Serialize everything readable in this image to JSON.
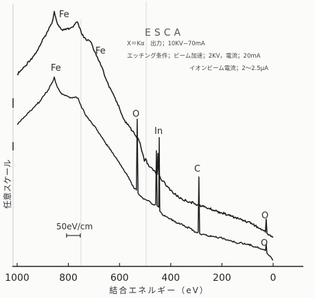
{
  "chart_data": {
    "type": "line",
    "title": "ESCA",
    "conditions": [
      "X＝Kα　出力；10KV−70mA",
      "エッチング条件；ビーム加速；2KV，電流；20mA",
      "イオンビーム電流；2〜2.5μA"
    ],
    "xlabel": "結合エネルギー（eV）",
    "ylabel": "任意スケール",
    "xlim": [
      1000,
      0
    ],
    "ylim": [
      0,
      100
    ],
    "x_reversed": true,
    "xticks": [
      1000,
      800,
      600,
      400,
      200,
      0
    ],
    "xtick_labels": [
      "1000",
      "800",
      "600",
      "400",
      "200",
      "0"
    ],
    "grid": false,
    "legend": "none",
    "peak_labels": [
      "Fe",
      "Fe",
      "Fe",
      "O",
      "In",
      "C",
      "O",
      "O"
    ],
    "scale_label": "50eV/cm",
    "line_color": "#1f1f1f",
    "series": [
      {
        "points": [
          [
            1000,
            73
          ],
          [
            985,
            74.5
          ],
          [
            970,
            76
          ],
          [
            955,
            78
          ],
          [
            940,
            79.5
          ],
          [
            925,
            81.5
          ],
          [
            910,
            84
          ],
          [
            895,
            87
          ],
          [
            880,
            89.5
          ],
          [
            868,
            92
          ],
          [
            860,
            94
          ],
          [
            855,
            97
          ],
          [
            850,
            95
          ],
          [
            845,
            93
          ],
          [
            835,
            91
          ],
          [
            825,
            90
          ],
          [
            810,
            90
          ],
          [
            795,
            90.5
          ],
          [
            785,
            91
          ],
          [
            775,
            92
          ],
          [
            765,
            93
          ],
          [
            758,
            91
          ],
          [
            750,
            89
          ],
          [
            740,
            87
          ],
          [
            730,
            86
          ],
          [
            720,
            86
          ],
          [
            710,
            85
          ],
          [
            700,
            82
          ],
          [
            690,
            80
          ],
          [
            680,
            78
          ],
          [
            670,
            76
          ],
          [
            660,
            73
          ],
          [
            650,
            70.5
          ],
          [
            640,
            68
          ],
          [
            630,
            66.5
          ],
          [
            620,
            64.5
          ],
          [
            610,
            62.5
          ],
          [
            600,
            60
          ],
          [
            590,
            57.5
          ],
          [
            580,
            55.5
          ],
          [
            570,
            54
          ],
          [
            560,
            53
          ],
          [
            550,
            51.5
          ],
          [
            540,
            50
          ],
          [
            530,
            49
          ],
          [
            520,
            47
          ],
          [
            510,
            43
          ],
          [
            503,
            40
          ],
          [
            498,
            41
          ],
          [
            492,
            39
          ],
          [
            485,
            38
          ],
          [
            475,
            37.5
          ],
          [
            465,
            36.5
          ],
          [
            455,
            35.5
          ],
          [
            453,
            35
          ],
          [
            450,
            43
          ],
          [
            447,
            35
          ],
          [
            440,
            33.5
          ],
          [
            430,
            32.5
          ],
          [
            420,
            31
          ],
          [
            410,
            30
          ],
          [
            400,
            29
          ],
          [
            385,
            27.5
          ],
          [
            370,
            26.5
          ],
          [
            355,
            25.5
          ],
          [
            340,
            25
          ],
          [
            325,
            24.5
          ],
          [
            310,
            24
          ],
          [
            295,
            23.5
          ],
          [
            280,
            23
          ],
          [
            265,
            22.5
          ],
          [
            250,
            22
          ],
          [
            235,
            21.5
          ],
          [
            220,
            21
          ],
          [
            205,
            20.5
          ],
          [
            190,
            20
          ],
          [
            175,
            19.5
          ],
          [
            160,
            19
          ],
          [
            145,
            18.5
          ],
          [
            130,
            18
          ],
          [
            115,
            17.5
          ],
          [
            100,
            17
          ],
          [
            85,
            16.5
          ],
          [
            70,
            15.5
          ],
          [
            55,
            14.5
          ],
          [
            40,
            13.8
          ],
          [
            30,
            13
          ],
          [
            27,
            18
          ],
          [
            24,
            12.5
          ],
          [
            15,
            12
          ],
          [
            5,
            11.5
          ],
          [
            0,
            11
          ]
        ]
      },
      {
        "points": [
          [
            1000,
            54
          ],
          [
            985,
            55.5
          ],
          [
            970,
            57
          ],
          [
            955,
            58.5
          ],
          [
            940,
            60
          ],
          [
            925,
            61.5
          ],
          [
            910,
            63
          ],
          [
            895,
            65
          ],
          [
            880,
            67
          ],
          [
            868,
            69
          ],
          [
            860,
            70.5
          ],
          [
            855,
            72
          ],
          [
            850,
            70
          ],
          [
            842,
            68
          ],
          [
            830,
            66
          ],
          [
            815,
            65
          ],
          [
            800,
            64.5
          ],
          [
            785,
            64
          ],
          [
            770,
            64.5
          ],
          [
            762,
            64
          ],
          [
            755,
            62
          ],
          [
            745,
            60
          ],
          [
            735,
            58
          ],
          [
            725,
            56.5
          ],
          [
            715,
            55.5
          ],
          [
            705,
            54
          ],
          [
            695,
            53
          ],
          [
            685,
            51.5
          ],
          [
            675,
            50
          ],
          [
            665,
            48.5
          ],
          [
            655,
            47
          ],
          [
            645,
            45.5
          ],
          [
            635,
            44.5
          ],
          [
            625,
            43
          ],
          [
            615,
            41.5
          ],
          [
            605,
            40
          ],
          [
            595,
            38.5
          ],
          [
            585,
            37
          ],
          [
            575,
            35.5
          ],
          [
            565,
            34
          ],
          [
            555,
            32
          ],
          [
            545,
            30
          ],
          [
            536,
            29.5
          ],
          [
            534,
            29
          ],
          [
            531,
            56
          ],
          [
            528,
            28
          ],
          [
            520,
            27
          ],
          [
            510,
            26
          ],
          [
            500,
            25.5
          ],
          [
            490,
            25
          ],
          [
            480,
            24.5
          ],
          [
            470,
            23.5
          ],
          [
            461,
            23.5
          ],
          [
            459,
            23.5
          ],
          [
            456,
            44
          ],
          [
            453,
            23
          ],
          [
            447,
            22.5
          ],
          [
            445,
            49
          ],
          [
            443,
            21
          ],
          [
            438,
            20.5
          ],
          [
            430,
            19.5
          ],
          [
            420,
            19
          ],
          [
            410,
            18.5
          ],
          [
            400,
            18
          ],
          [
            385,
            17
          ],
          [
            370,
            16.5
          ],
          [
            355,
            16
          ],
          [
            340,
            15
          ],
          [
            325,
            14.5
          ],
          [
            310,
            13.5
          ],
          [
            300,
            13
          ],
          [
            293,
            13
          ],
          [
            290,
            34
          ],
          [
            287,
            12.5
          ],
          [
            280,
            12
          ],
          [
            265,
            12
          ],
          [
            250,
            11.5
          ],
          [
            235,
            11.5
          ],
          [
            220,
            11
          ],
          [
            205,
            11
          ],
          [
            190,
            10.5
          ],
          [
            175,
            10
          ],
          [
            160,
            9.5
          ],
          [
            145,
            9
          ],
          [
            130,
            9
          ],
          [
            115,
            8.5
          ],
          [
            100,
            8.5
          ],
          [
            85,
            8
          ],
          [
            70,
            7.5
          ],
          [
            55,
            7
          ],
          [
            40,
            6.5
          ],
          [
            30,
            6
          ],
          [
            27,
            8.5
          ],
          [
            24,
            5
          ],
          [
            15,
            4
          ],
          [
            5,
            3
          ],
          [
            0,
            2.5
          ]
        ]
      }
    ]
  }
}
